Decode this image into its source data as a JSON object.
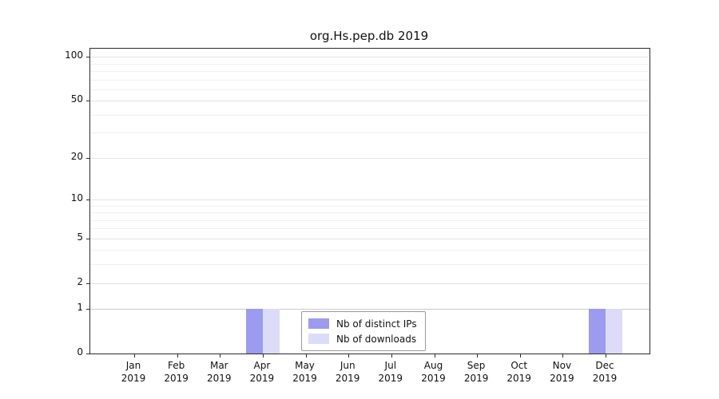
{
  "title": "org.Hs.pep.db 2019",
  "chart_data": {
    "type": "bar",
    "title": "org.Hs.pep.db 2019",
    "categories": [
      "Jan",
      "Feb",
      "Mar",
      "Apr",
      "May",
      "Jun",
      "Jul",
      "Aug",
      "Sep",
      "Oct",
      "Nov",
      "Dec"
    ],
    "year": "2019",
    "series": [
      {
        "name": "Nb of distinct IPs",
        "color": "#9b9bef",
        "values": [
          0,
          0,
          0,
          1,
          0,
          0,
          0,
          0,
          0,
          0,
          0,
          1
        ]
      },
      {
        "name": "Nb of downloads",
        "color": "#dcdcf8",
        "values": [
          0,
          0,
          0,
          1,
          0,
          0,
          0,
          0,
          0,
          0,
          0,
          1
        ]
      }
    ],
    "yticks": [
      0,
      1,
      2,
      5,
      10,
      20,
      50,
      100
    ],
    "minor_gridlines": [
      3,
      4,
      6,
      7,
      8,
      9,
      30,
      40,
      60,
      70,
      80,
      90
    ],
    "scale": "log10(1+x)",
    "ylim": [
      0,
      113
    ],
    "grid": true,
    "legend_position": "bottom-center"
  }
}
